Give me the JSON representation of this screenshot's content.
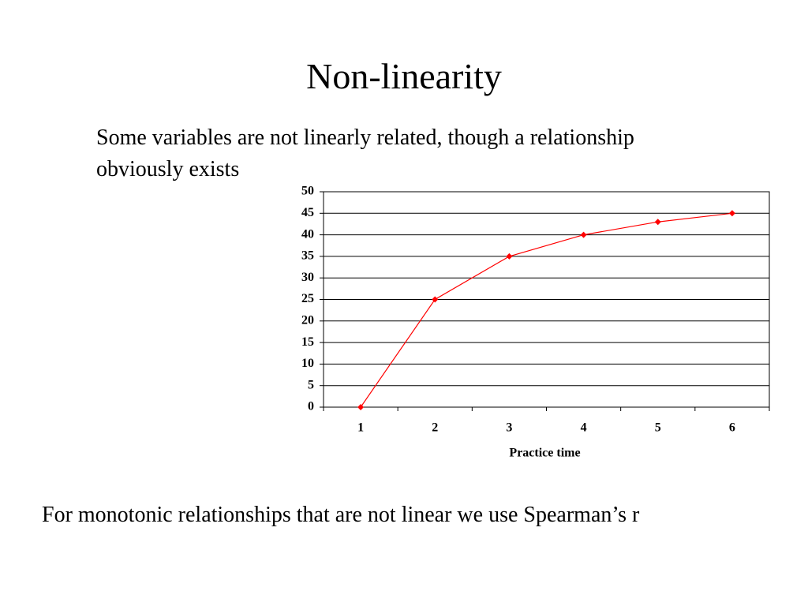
{
  "slide": {
    "title": "Non-linearity",
    "body": [
      "Some variables are not linearly related, though a relationship",
      "obviously exists"
    ],
    "footer": "For monotonic relationships that are not linear we use Spearman’s r"
  },
  "chart_data": {
    "type": "line",
    "x_label": "Practice time",
    "categories": [
      1,
      2,
      3,
      4,
      5,
      6
    ],
    "values": [
      0,
      25,
      35,
      40,
      43,
      45
    ],
    "color": "#ff0000",
    "ylim": [
      0,
      50
    ],
    "yticks": [
      0,
      5,
      10,
      15,
      20,
      25,
      30,
      35,
      40,
      45,
      50
    ],
    "grid": true
  }
}
